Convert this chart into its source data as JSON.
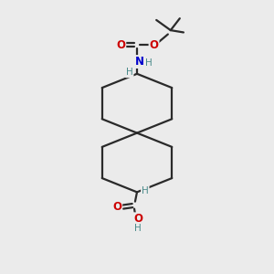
{
  "bg_color": "#ebebeb",
  "bond_color": "#2a2a2a",
  "bond_width": 1.6,
  "atom_colors": {
    "H": "#4a8a8a",
    "N": "#0000cc",
    "O": "#cc0000"
  },
  "font_size_atom": 8.5,
  "font_size_H": 7.5
}
